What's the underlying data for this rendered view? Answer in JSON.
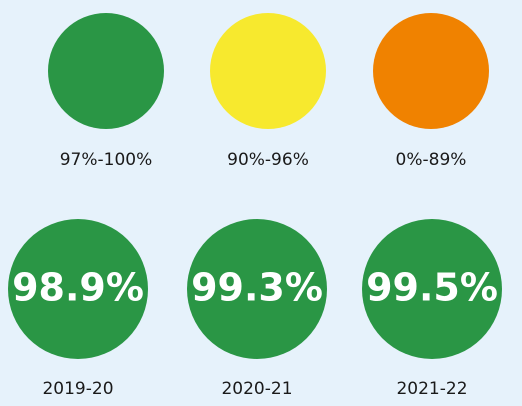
{
  "legend": [
    {
      "label": "97%-100%",
      "color": "#2a9645"
    },
    {
      "label": "90%-96%",
      "color": "#f7e92e"
    },
    {
      "label": "0%-89%",
      "color": "#f08200"
    }
  ],
  "years": [
    {
      "label": "2019-20",
      "value": "98.9%",
      "color": "#2a9645"
    },
    {
      "label": "2020-21",
      "value": "99.3%",
      "color": "#2a9645"
    },
    {
      "label": "2021-22",
      "value": "99.5%",
      "color": "#2a9645"
    }
  ]
}
